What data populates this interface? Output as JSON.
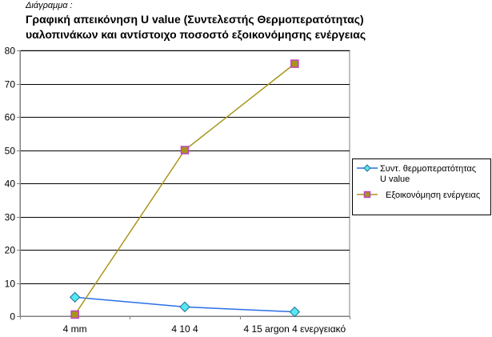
{
  "caption": "Διάγραμμα :",
  "chart_data": {
    "type": "line",
    "title_lines": [
      "Γραφική απεικόνηση U value (Συντελεστής Θερμοπερατότητας)",
      "υαλοπινάκων και αντίστοιχο ποσοστό εξοικονόμησης ενέργειας"
    ],
    "categories": [
      "4 mm",
      "4 10 4",
      "4 15 argon 4 ενεργειακό"
    ],
    "ylim": [
      0,
      80
    ],
    "yticks": [
      0,
      10,
      20,
      30,
      40,
      50,
      60,
      70,
      80
    ],
    "grid": true,
    "legend_position": "right",
    "series": [
      {
        "name_lines": [
          "Συντ. θερμοπερατότητας",
          "U value"
        ],
        "values": [
          5.7,
          2.8,
          1.3
        ],
        "line_color": "#2a6fe8",
        "marker": "diamond",
        "marker_fill": "#55e8f0",
        "marker_stroke": "#1f6f99"
      },
      {
        "name_lines": [
          "Εξοικονόμηση ενέργειας"
        ],
        "values": [
          0.5,
          50,
          76
        ],
        "line_color": "#a8961c",
        "marker": "square",
        "marker_fill": "#a8961c",
        "marker_stroke": "#c040c0"
      }
    ]
  },
  "colors": {
    "plot_background": "#ffffff",
    "grid": "#000000",
    "axis": "#808080",
    "legend_border": "#000000"
  }
}
